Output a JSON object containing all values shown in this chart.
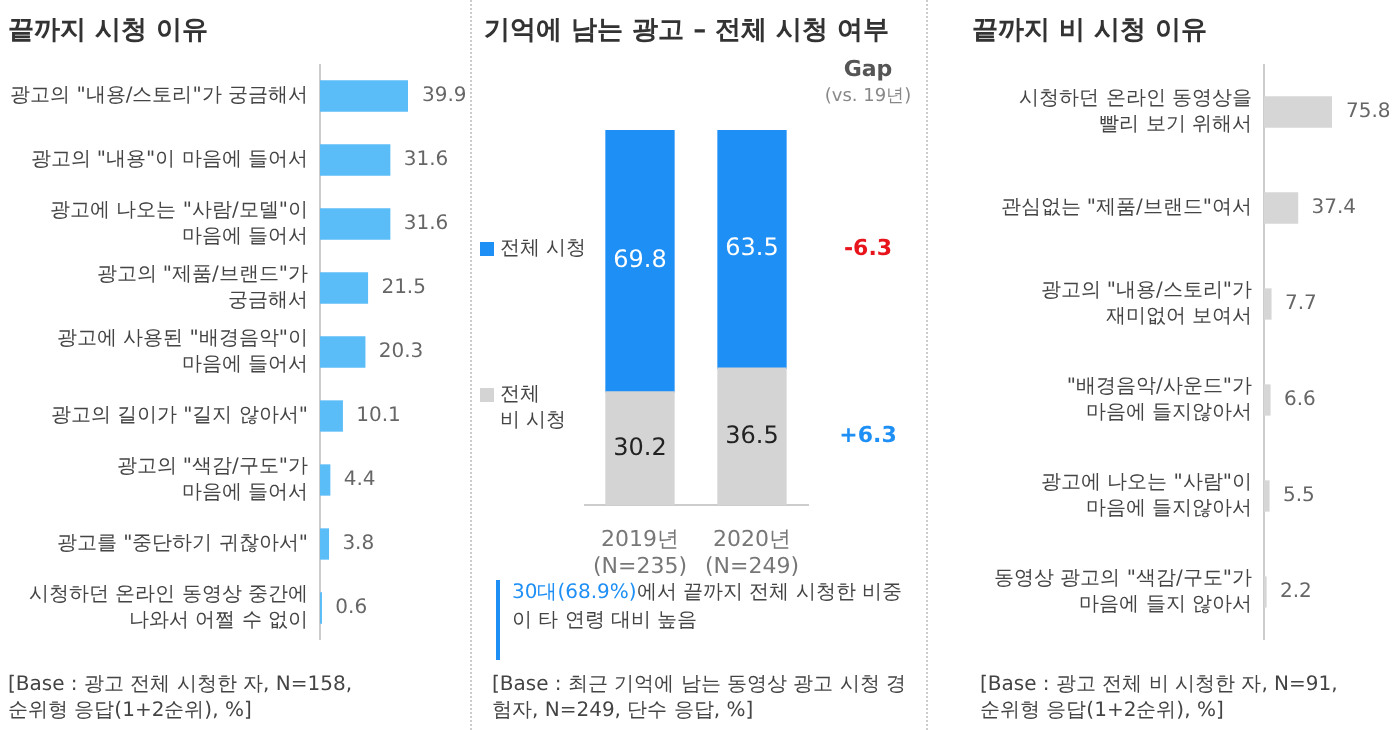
{
  "chart_data": [
    {
      "type": "bar",
      "orientation": "horizontal",
      "title": "끝까지 시청 이유",
      "categories": [
        "광고의 \"내용/스토리\"가 궁금해서",
        "광고의 \"내용\"이 마음에 들어서",
        "광고에 나오는 \"사람/모델\"이\n마음에 들어서",
        "광고의 \"제품/브랜드\"가\n궁금해서",
        "광고에 사용된 \"배경음악\"이\n마음에 들어서",
        "광고의 길이가 \"길지 않아서\"",
        "광고의 \"색감/구도\"가\n마음에 들어서",
        "광고를 \"중단하기 귀찮아서\"",
        "시청하던 온라인 동영상 중간에\n나와서 어쩔 수 없이"
      ],
      "values": [
        39.9,
        31.6,
        31.6,
        21.5,
        20.3,
        10.1,
        4.4,
        3.8,
        0.6
      ],
      "color": "#5bbdf8",
      "data_labels": true,
      "annotations": [
        "[Base : 광고 전체 시청한 자, N=158,\n순위형 응답(1+2순위), %]"
      ]
    },
    {
      "type": "bar",
      "stacked": true,
      "title": "기억에 남는 광고 – 전체 시청 여부",
      "categories": [
        "2019년\n(N=235)",
        "2020년\n(N=249)"
      ],
      "series": [
        {
          "name": "전체\n비 시청",
          "color": "#d4d4d4",
          "values": [
            30.2,
            36.5
          ]
        },
        {
          "name": "전체 시청",
          "color": "#1e8ff5",
          "values": [
            69.8,
            63.5
          ]
        }
      ],
      "data_labels": true,
      "legend": "left",
      "annotations": [
        "Gap",
        "(vs. 19년)",
        "-6.3",
        "+6.3",
        "30대(68.9%)",
        "에서 끝까지 전체 시청한 비중이 타 연령 대비 높음",
        "[Base : 최근 기억에 남는 동영상 광고 시청 경험자, N=249, 단수 응답, %]"
      ]
    },
    {
      "type": "bar",
      "orientation": "horizontal",
      "title": "끝까지 비 시청 이유",
      "categories": [
        "시청하던 온라인 동영상을\n빨리 보기 위해서",
        "관심없는 \"제품/브랜드\"여서",
        "광고의 \"내용/스토리\"가\n재미없어 보여서",
        "\"배경음악/사운드\"가\n마음에 들지않아서",
        "광고에 나오는 \"사람\"이\n마음에 들지않아서",
        "동영상 광고의 \"색감/구도\"가\n마음에 들지 않아서"
      ],
      "values": [
        75.8,
        37.4,
        7.7,
        6.6,
        5.5,
        2.2
      ],
      "color": "#d6d6d6",
      "data_labels": true,
      "annotations": [
        "[Base : 광고 전체 비 시청한 자, N=91,\n순위형 응답(1+2순위), %]"
      ]
    }
  ]
}
